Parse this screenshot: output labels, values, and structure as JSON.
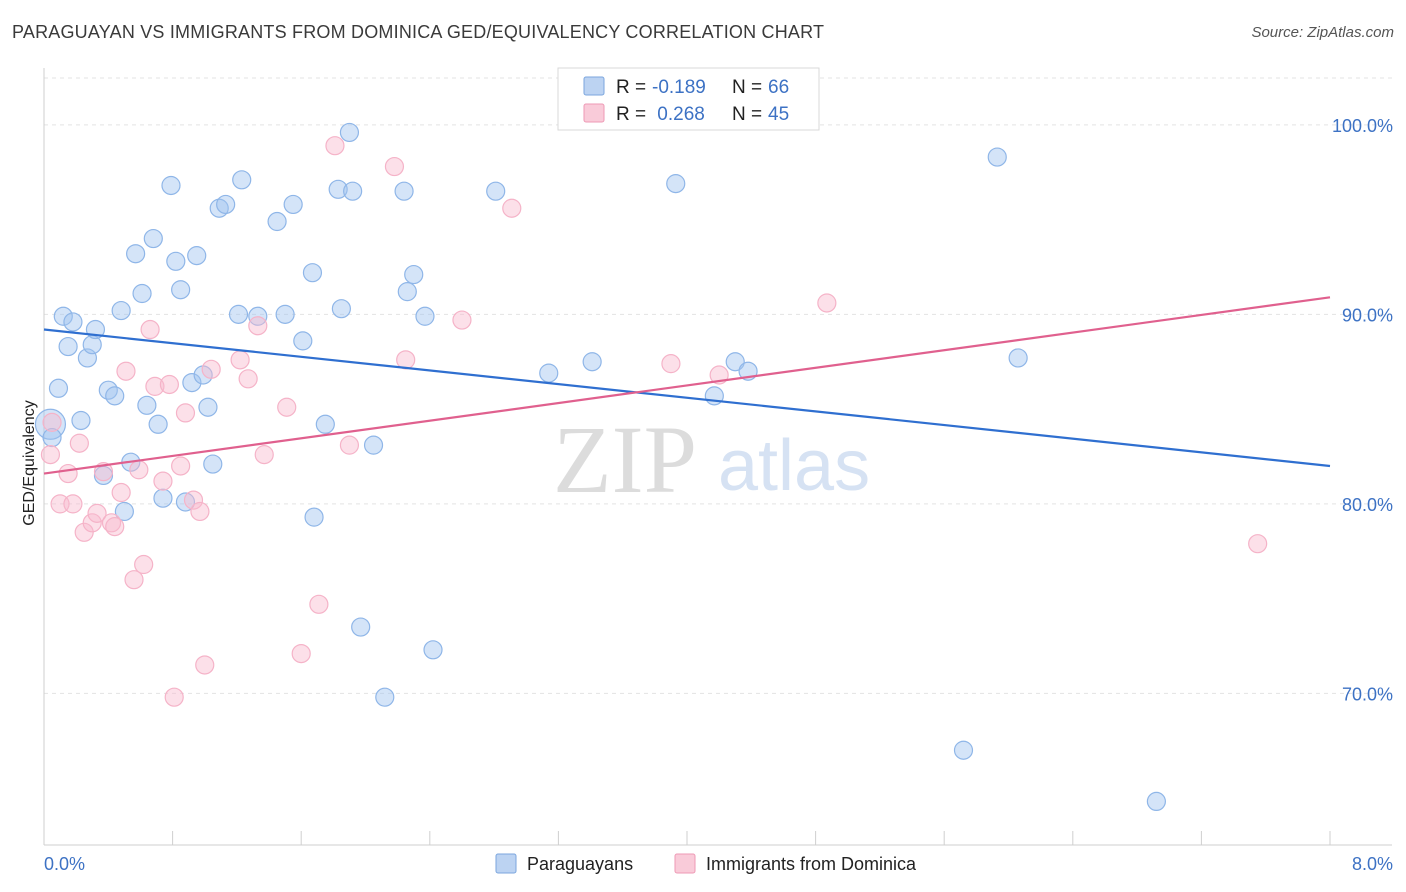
{
  "header": {
    "title": "PARAGUAYAN VS IMMIGRANTS FROM DOMINICA GED/EQUIVALENCY CORRELATION CHART",
    "source": "Source: ZipAtlas.com"
  },
  "watermark": {
    "zip": "ZIP",
    "atlas": "atlas"
  },
  "legend": {
    "rows": [
      {
        "r_label": "R =",
        "r_value": "-0.189",
        "n_label": "N =",
        "n_value": "66"
      },
      {
        "r_label": "R =",
        "r_value": " 0.268",
        "n_label": "N =",
        "n_value": "45"
      }
    ]
  },
  "chart_data": {
    "type": "scatter",
    "ylabel": "GED/Equivalency",
    "xlim": [
      0,
      8
    ],
    "ylim": [
      62,
      103
    ],
    "x_tick_labels": [
      "0.0%",
      "8.0%"
    ],
    "y_ticks": [
      70,
      80,
      90,
      100
    ],
    "y_tick_labels": [
      "70.0%",
      "80.0%",
      "90.0%",
      "100.0%"
    ],
    "grid": true,
    "legend_position": "top-center",
    "series": [
      {
        "name": "Paraguayans",
        "color": "#8fb6e8",
        "trend_color": "#2f6fd0",
        "trend": {
          "x": [
            0,
            8
          ],
          "y": [
            89.2,
            82.0
          ]
        },
        "points": [
          [
            0.04,
            84.2
          ],
          [
            0.05,
            83.5
          ],
          [
            0.09,
            86.1
          ],
          [
            0.12,
            89.9
          ],
          [
            0.15,
            88.3
          ],
          [
            0.18,
            89.6
          ],
          [
            0.23,
            84.4
          ],
          [
            0.27,
            87.7
          ],
          [
            0.3,
            88.4
          ],
          [
            0.32,
            89.2
          ],
          [
            0.37,
            81.5
          ],
          [
            0.4,
            86.0
          ],
          [
            0.44,
            85.7
          ],
          [
            0.48,
            90.2
          ],
          [
            0.5,
            79.6
          ],
          [
            0.54,
            82.2
          ],
          [
            0.57,
            93.2
          ],
          [
            0.61,
            91.1
          ],
          [
            0.64,
            85.2
          ],
          [
            0.68,
            94.0
          ],
          [
            0.71,
            84.2
          ],
          [
            0.74,
            80.3
          ],
          [
            0.79,
            96.8
          ],
          [
            0.82,
            92.8
          ],
          [
            0.85,
            91.3
          ],
          [
            0.88,
            80.1
          ],
          [
            0.92,
            86.4
          ],
          [
            0.95,
            93.1
          ],
          [
            0.99,
            86.8
          ],
          [
            1.02,
            85.1
          ],
          [
            1.05,
            82.1
          ],
          [
            1.09,
            95.6
          ],
          [
            1.13,
            95.8
          ],
          [
            1.21,
            90.0
          ],
          [
            1.23,
            97.1
          ],
          [
            1.33,
            89.9
          ],
          [
            1.45,
            94.9
          ],
          [
            1.5,
            90.0
          ],
          [
            1.55,
            95.8
          ],
          [
            1.61,
            88.6
          ],
          [
            1.67,
            92.2
          ],
          [
            1.68,
            79.3
          ],
          [
            1.75,
            84.2
          ],
          [
            1.83,
            96.6
          ],
          [
            1.85,
            90.3
          ],
          [
            1.9,
            99.6
          ],
          [
            1.92,
            96.5
          ],
          [
            1.97,
            73.5
          ],
          [
            2.05,
            83.1
          ],
          [
            2.12,
            69.8
          ],
          [
            2.24,
            96.5
          ],
          [
            2.26,
            91.2
          ],
          [
            2.3,
            92.1
          ],
          [
            2.37,
            89.9
          ],
          [
            2.42,
            72.3
          ],
          [
            2.81,
            96.5
          ],
          [
            3.14,
            86.9
          ],
          [
            3.41,
            87.5
          ],
          [
            3.93,
            96.9
          ],
          [
            4.17,
            85.7
          ],
          [
            4.3,
            87.5
          ],
          [
            4.38,
            87.0
          ],
          [
            5.72,
            67.0
          ],
          [
            5.93,
            98.3
          ],
          [
            6.06,
            87.7
          ],
          [
            6.92,
            64.3
          ]
        ]
      },
      {
        "name": "Immigrants from Dominica",
        "color": "#f5b3c8",
        "trend_color": "#e0608e",
        "trend": {
          "x": [
            0,
            8
          ],
          "y": [
            81.6,
            90.9
          ]
        },
        "points": [
          [
            0.04,
            82.6
          ],
          [
            0.05,
            84.3
          ],
          [
            0.1,
            80.0
          ],
          [
            0.15,
            81.6
          ],
          [
            0.18,
            80.0
          ],
          [
            0.22,
            83.2
          ],
          [
            0.25,
            78.5
          ],
          [
            0.3,
            79.0
          ],
          [
            0.33,
            79.5
          ],
          [
            0.37,
            81.7
          ],
          [
            0.42,
            79.0
          ],
          [
            0.44,
            78.8
          ],
          [
            0.48,
            80.6
          ],
          [
            0.51,
            87.0
          ],
          [
            0.56,
            76.0
          ],
          [
            0.59,
            81.8
          ],
          [
            0.62,
            76.8
          ],
          [
            0.66,
            89.2
          ],
          [
            0.69,
            86.2
          ],
          [
            0.74,
            81.2
          ],
          [
            0.78,
            86.3
          ],
          [
            0.81,
            69.8
          ],
          [
            0.85,
            82.0
          ],
          [
            0.88,
            84.8
          ],
          [
            0.93,
            80.2
          ],
          [
            0.97,
            79.6
          ],
          [
            1.0,
            71.5
          ],
          [
            1.04,
            87.1
          ],
          [
            1.22,
            87.6
          ],
          [
            1.27,
            86.6
          ],
          [
            1.33,
            89.4
          ],
          [
            1.37,
            82.6
          ],
          [
            1.51,
            85.1
          ],
          [
            1.6,
            72.1
          ],
          [
            1.71,
            74.7
          ],
          [
            1.81,
            98.9
          ],
          [
            1.9,
            83.1
          ],
          [
            2.18,
            97.8
          ],
          [
            2.25,
            87.6
          ],
          [
            2.6,
            89.7
          ],
          [
            2.91,
            95.6
          ],
          [
            3.9,
            87.4
          ],
          [
            4.2,
            86.8
          ],
          [
            4.87,
            90.6
          ],
          [
            7.55,
            77.9
          ]
        ]
      }
    ]
  }
}
